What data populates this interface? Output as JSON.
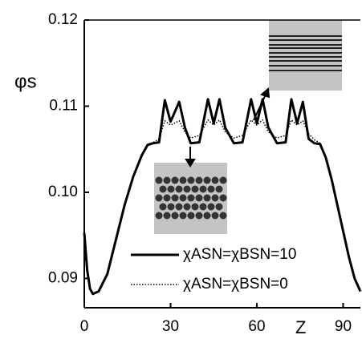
{
  "chart_data": {
    "type": "line",
    "y_label": "φs",
    "x_label": "Z",
    "x": [
      0,
      1,
      2,
      3,
      5,
      8,
      11,
      14,
      17,
      20,
      22,
      24,
      26,
      28,
      30,
      33,
      35,
      37,
      40,
      43,
      45,
      47,
      49,
      52,
      55,
      58,
      60,
      62,
      64,
      67,
      70,
      72,
      74,
      76,
      78,
      80,
      82,
      84,
      86,
      88,
      90,
      92,
      94,
      96
    ],
    "series": [
      {
        "name": "χASN=χBSN=10",
        "color": "#000000",
        "style": "solid",
        "values": [
          0.0953,
          0.091,
          0.0888,
          0.0882,
          0.0885,
          0.0905,
          0.0945,
          0.0985,
          0.1018,
          0.1043,
          0.1055,
          0.1057,
          0.1058,
          0.1107,
          0.1082,
          0.1105,
          0.1075,
          0.1057,
          0.1058,
          0.1108,
          0.108,
          0.1108,
          0.1075,
          0.1057,
          0.1058,
          0.1108,
          0.108,
          0.1108,
          0.1075,
          0.1057,
          0.1058,
          0.1108,
          0.108,
          0.1105,
          0.1062,
          0.1057,
          0.1056,
          0.104,
          0.1015,
          0.0985,
          0.0955,
          0.0925,
          0.09,
          0.0885
        ]
      },
      {
        "name": "χASN=χBSN=0",
        "color": "#000000",
        "style": "dotted",
        "values": [
          0.0953,
          0.091,
          0.0888,
          0.0882,
          0.0885,
          0.0905,
          0.0945,
          0.0985,
          0.1018,
          0.1043,
          0.1055,
          0.1058,
          0.1062,
          0.1083,
          0.1078,
          0.1083,
          0.107,
          0.1063,
          0.1066,
          0.1084,
          0.1078,
          0.1084,
          0.107,
          0.1063,
          0.1066,
          0.1084,
          0.1078,
          0.1084,
          0.107,
          0.1063,
          0.1066,
          0.1084,
          0.1078,
          0.1083,
          0.1068,
          0.1061,
          0.1057,
          0.104,
          0.1015,
          0.0985,
          0.0955,
          0.0925,
          0.09,
          0.0885
        ]
      }
    ],
    "xlim": [
      0,
      96
    ],
    "ylim": [
      0.0866,
      0.12
    ],
    "xticks": [
      0,
      30,
      60,
      90
    ],
    "yticks": [
      0.09,
      {
        "value": 0.1,
        "label": "0.10"
      },
      0.11,
      0.12
    ]
  }
}
